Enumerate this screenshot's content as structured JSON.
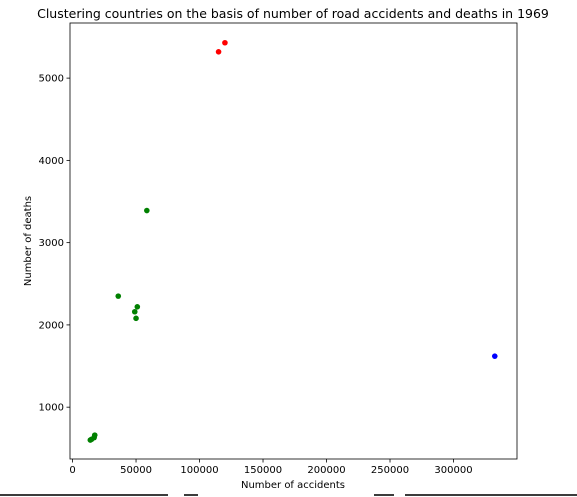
{
  "chart_data": {
    "type": "scatter",
    "title": "Clustering countries on the basis of number of road accidents and deaths in 1969",
    "xlabel": "Number of accidents",
    "ylabel": "Number of deaths",
    "xlim": [
      -2000,
      350000
    ],
    "ylim": [
      370,
      5670
    ],
    "xticks": [
      0,
      50000,
      100000,
      150000,
      200000,
      250000,
      300000
    ],
    "xtick_labels": [
      "0",
      "50000",
      "100000",
      "150000",
      "200000",
      "250000",
      "300000"
    ],
    "yticks": [
      1000,
      2000,
      3000,
      4000,
      5000
    ],
    "ytick_labels": [
      "1000",
      "2000",
      "3000",
      "4000",
      "5000"
    ],
    "grid": false,
    "legend": "none",
    "series": [
      {
        "color": "#ff0000",
        "points": [
          [
            115000,
            5320
          ],
          [
            120000,
            5430
          ]
        ]
      },
      {
        "color": "#0000ff",
        "points": [
          [
            332500,
            1620
          ]
        ]
      },
      {
        "color": "#008000",
        "points": [
          [
            58500,
            3390
          ],
          [
            36000,
            2350
          ],
          [
            51000,
            2220
          ],
          [
            49000,
            2160
          ],
          [
            50000,
            2080
          ],
          [
            17500,
            660
          ],
          [
            17000,
            630
          ],
          [
            15000,
            610
          ],
          [
            14000,
            600
          ]
        ]
      }
    ]
  }
}
